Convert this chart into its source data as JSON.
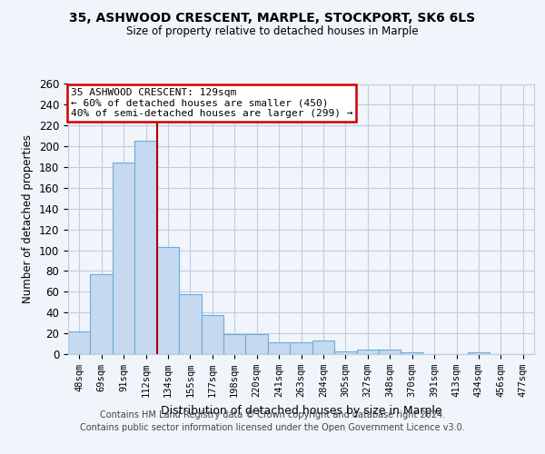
{
  "title1": "35, ASHWOOD CRESCENT, MARPLE, STOCKPORT, SK6 6LS",
  "title2": "Size of property relative to detached houses in Marple",
  "xlabel": "Distribution of detached houses by size in Marple",
  "ylabel": "Number of detached properties",
  "categories": [
    "48sqm",
    "69sqm",
    "91sqm",
    "112sqm",
    "134sqm",
    "155sqm",
    "177sqm",
    "198sqm",
    "220sqm",
    "241sqm",
    "263sqm",
    "284sqm",
    "305sqm",
    "327sqm",
    "348sqm",
    "370sqm",
    "391sqm",
    "413sqm",
    "434sqm",
    "456sqm",
    "477sqm"
  ],
  "values": [
    22,
    77,
    184,
    205,
    103,
    58,
    38,
    19,
    19,
    11,
    11,
    13,
    3,
    4,
    4,
    2,
    0,
    0,
    2,
    0,
    0
  ],
  "bar_color": "#c5d9f0",
  "bar_edge_color": "#6baed6",
  "red_line_color": "#aa0000",
  "red_line_x": 4,
  "annotation_text": "35 ASHWOOD CRESCENT: 129sqm\n← 60% of detached houses are smaller (450)\n40% of semi-detached houses are larger (299) →",
  "annotation_box_color": "#ffffff",
  "annotation_box_edge_color": "#cc0000",
  "ylim": [
    0,
    260
  ],
  "yticks": [
    0,
    20,
    40,
    60,
    80,
    100,
    120,
    140,
    160,
    180,
    200,
    220,
    240,
    260
  ],
  "footer1": "Contains HM Land Registry data © Crown copyright and database right 2024.",
  "footer2": "Contains public sector information licensed under the Open Government Licence v3.0.",
  "background_color": "#f0f4fb",
  "plot_bg_color": "#f0f4fb",
  "grid_color": "#c0cce0"
}
